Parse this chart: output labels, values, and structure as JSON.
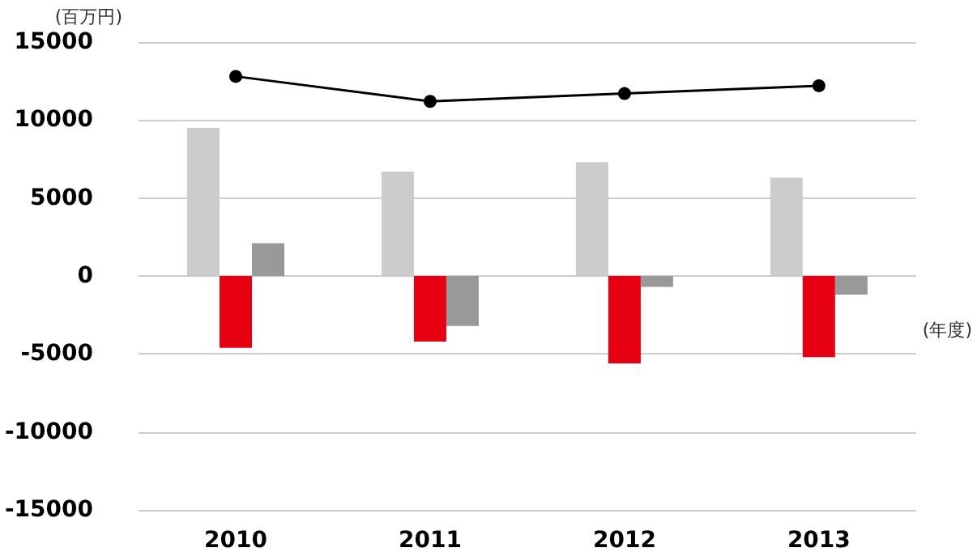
{
  "chart_data": {
    "type": "bar",
    "xlabel": "(年度)",
    "ylabel": "(百万円)",
    "categories": [
      "2010",
      "2011",
      "2012",
      "2013"
    ],
    "series": [
      {
        "color": "#cccccc",
        "values": [
          9500,
          6700,
          7300,
          6300
        ]
      },
      {
        "color": "#e60012",
        "values": [
          -4600,
          -4200,
          -5600,
          -5200
        ]
      },
      {
        "color": "#999999",
        "values": [
          2100,
          -3200,
          -700,
          -1200
        ]
      },
      {
        "type": "line",
        "color": "#000000",
        "values": [
          12800,
          11200,
          11700,
          12200
        ]
      }
    ],
    "ylim": [
      -15000,
      15000
    ],
    "yticks": [
      -15000,
      -10000,
      -5000,
      0,
      5000,
      10000,
      15000
    ],
    "grid": "y",
    "marker": "circle",
    "line_style": "solid"
  }
}
